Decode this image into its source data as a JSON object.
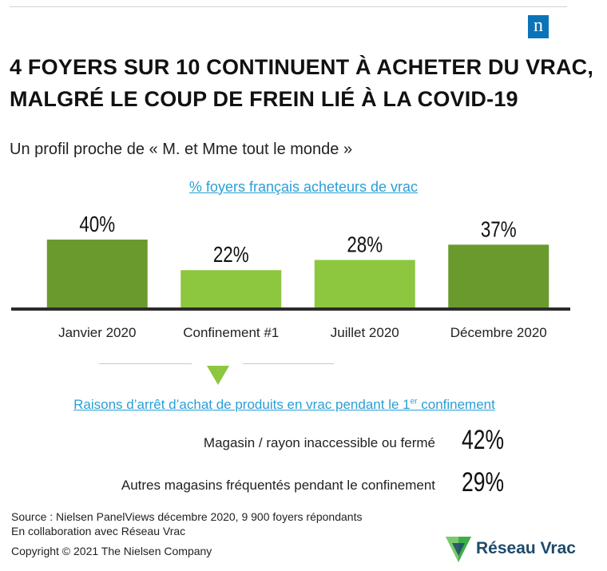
{
  "brand": {
    "logo_letter": "n",
    "logo_color": "#0b73b8"
  },
  "header": {
    "title_line1": "4 FOYERS SUR 10 CONTINUENT À ACHETER DU VRAC,",
    "title_line2": "MALGRÉ LE COUP DE FREIN LIÉ À LA COVID-19",
    "subtitle": "Un profil proche de « M. et Mme tout le monde »"
  },
  "chart_data": {
    "type": "bar",
    "title": "% foyers français acheteurs de vrac",
    "categories": [
      "Janvier 2020",
      "Confinement #1",
      "Juillet 2020",
      "Décembre 2020"
    ],
    "values": [
      40,
      22,
      28,
      37
    ],
    "data_labels": [
      "40%",
      "22%",
      "28%",
      "37%"
    ],
    "colors": [
      "#6a9a2e",
      "#8dc63f",
      "#8dc63f",
      "#6a9a2e"
    ],
    "xlabel": "",
    "ylabel": "",
    "ylim": [
      0,
      40
    ],
    "grid": false,
    "legend": "none"
  },
  "reasons": {
    "title_prefix": "Raisons d’arrêt d’achat de produits en vrac pendant le 1",
    "title_sup": "er",
    "title_suffix": " confinement",
    "items": [
      {
        "label": "Magasin / rayon inaccessible ou fermé",
        "value": "42%"
      },
      {
        "label": "Autres magasins fréquentés pendant le confinement",
        "value": "29%"
      }
    ]
  },
  "footer": {
    "source": "Source : Nielsen PanelViews décembre 2020, 9 900 foyers répondants",
    "collab": "En collaboration avec Réseau Vrac",
    "copyright": "Copyright © 2021 The Nielsen Company"
  },
  "partner": {
    "name": "Réseau Vrac",
    "color_dark": "#1e4a6a",
    "color_green": "#3fae49"
  },
  "colors": {
    "accent_blue": "#2a9fd6",
    "dark_green": "#6a9a2e",
    "light_green": "#8dc63f"
  }
}
